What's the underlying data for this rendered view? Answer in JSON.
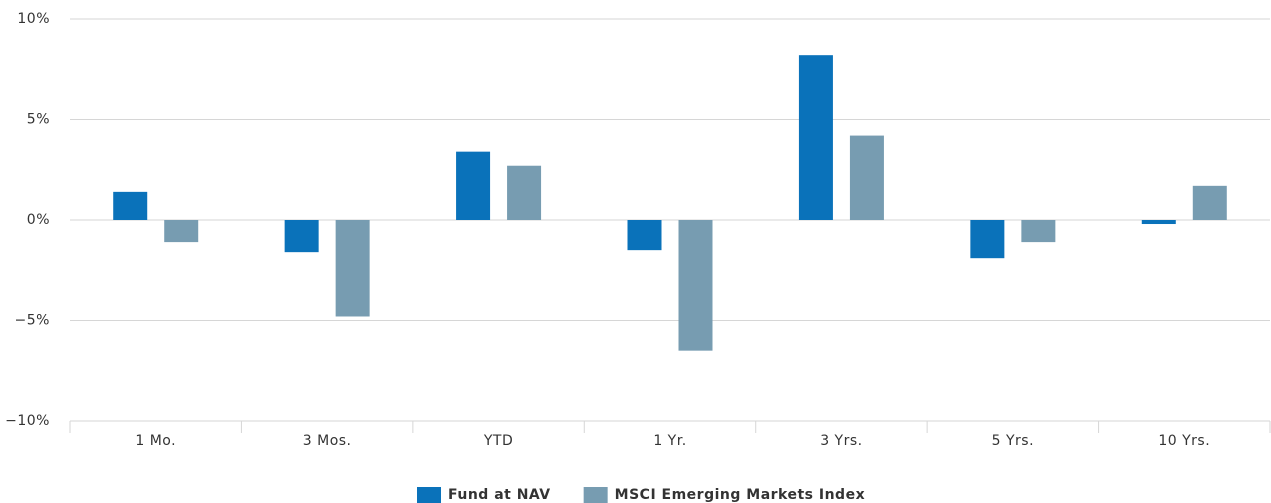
{
  "chart_data": {
    "type": "bar",
    "categories": [
      "1 Mo.",
      "3 Mos.",
      "YTD",
      "1 Yr.",
      "3 Yrs.",
      "5 Yrs.",
      "10 Yrs."
    ],
    "series": [
      {
        "name": "Fund at NAV",
        "color": "#0a72ba",
        "values": [
          1.4,
          -1.6,
          3.4,
          -1.5,
          8.2,
          -1.9,
          -0.2
        ]
      },
      {
        "name": "MSCI Emerging Markets Index",
        "color": "#779cb1",
        "values": [
          -1.1,
          -4.8,
          2.7,
          -6.5,
          4.2,
          -1.1,
          1.7
        ]
      }
    ],
    "ylim": [
      -10,
      10
    ],
    "yticks": [
      {
        "value": -10,
        "label": "−10%"
      },
      {
        "value": -5,
        "label": "−5%"
      },
      {
        "value": 0,
        "label": "0%"
      },
      {
        "value": 5,
        "label": "5%"
      },
      {
        "value": 10,
        "label": "10%"
      }
    ],
    "grid": true,
    "legend": "bottom"
  }
}
